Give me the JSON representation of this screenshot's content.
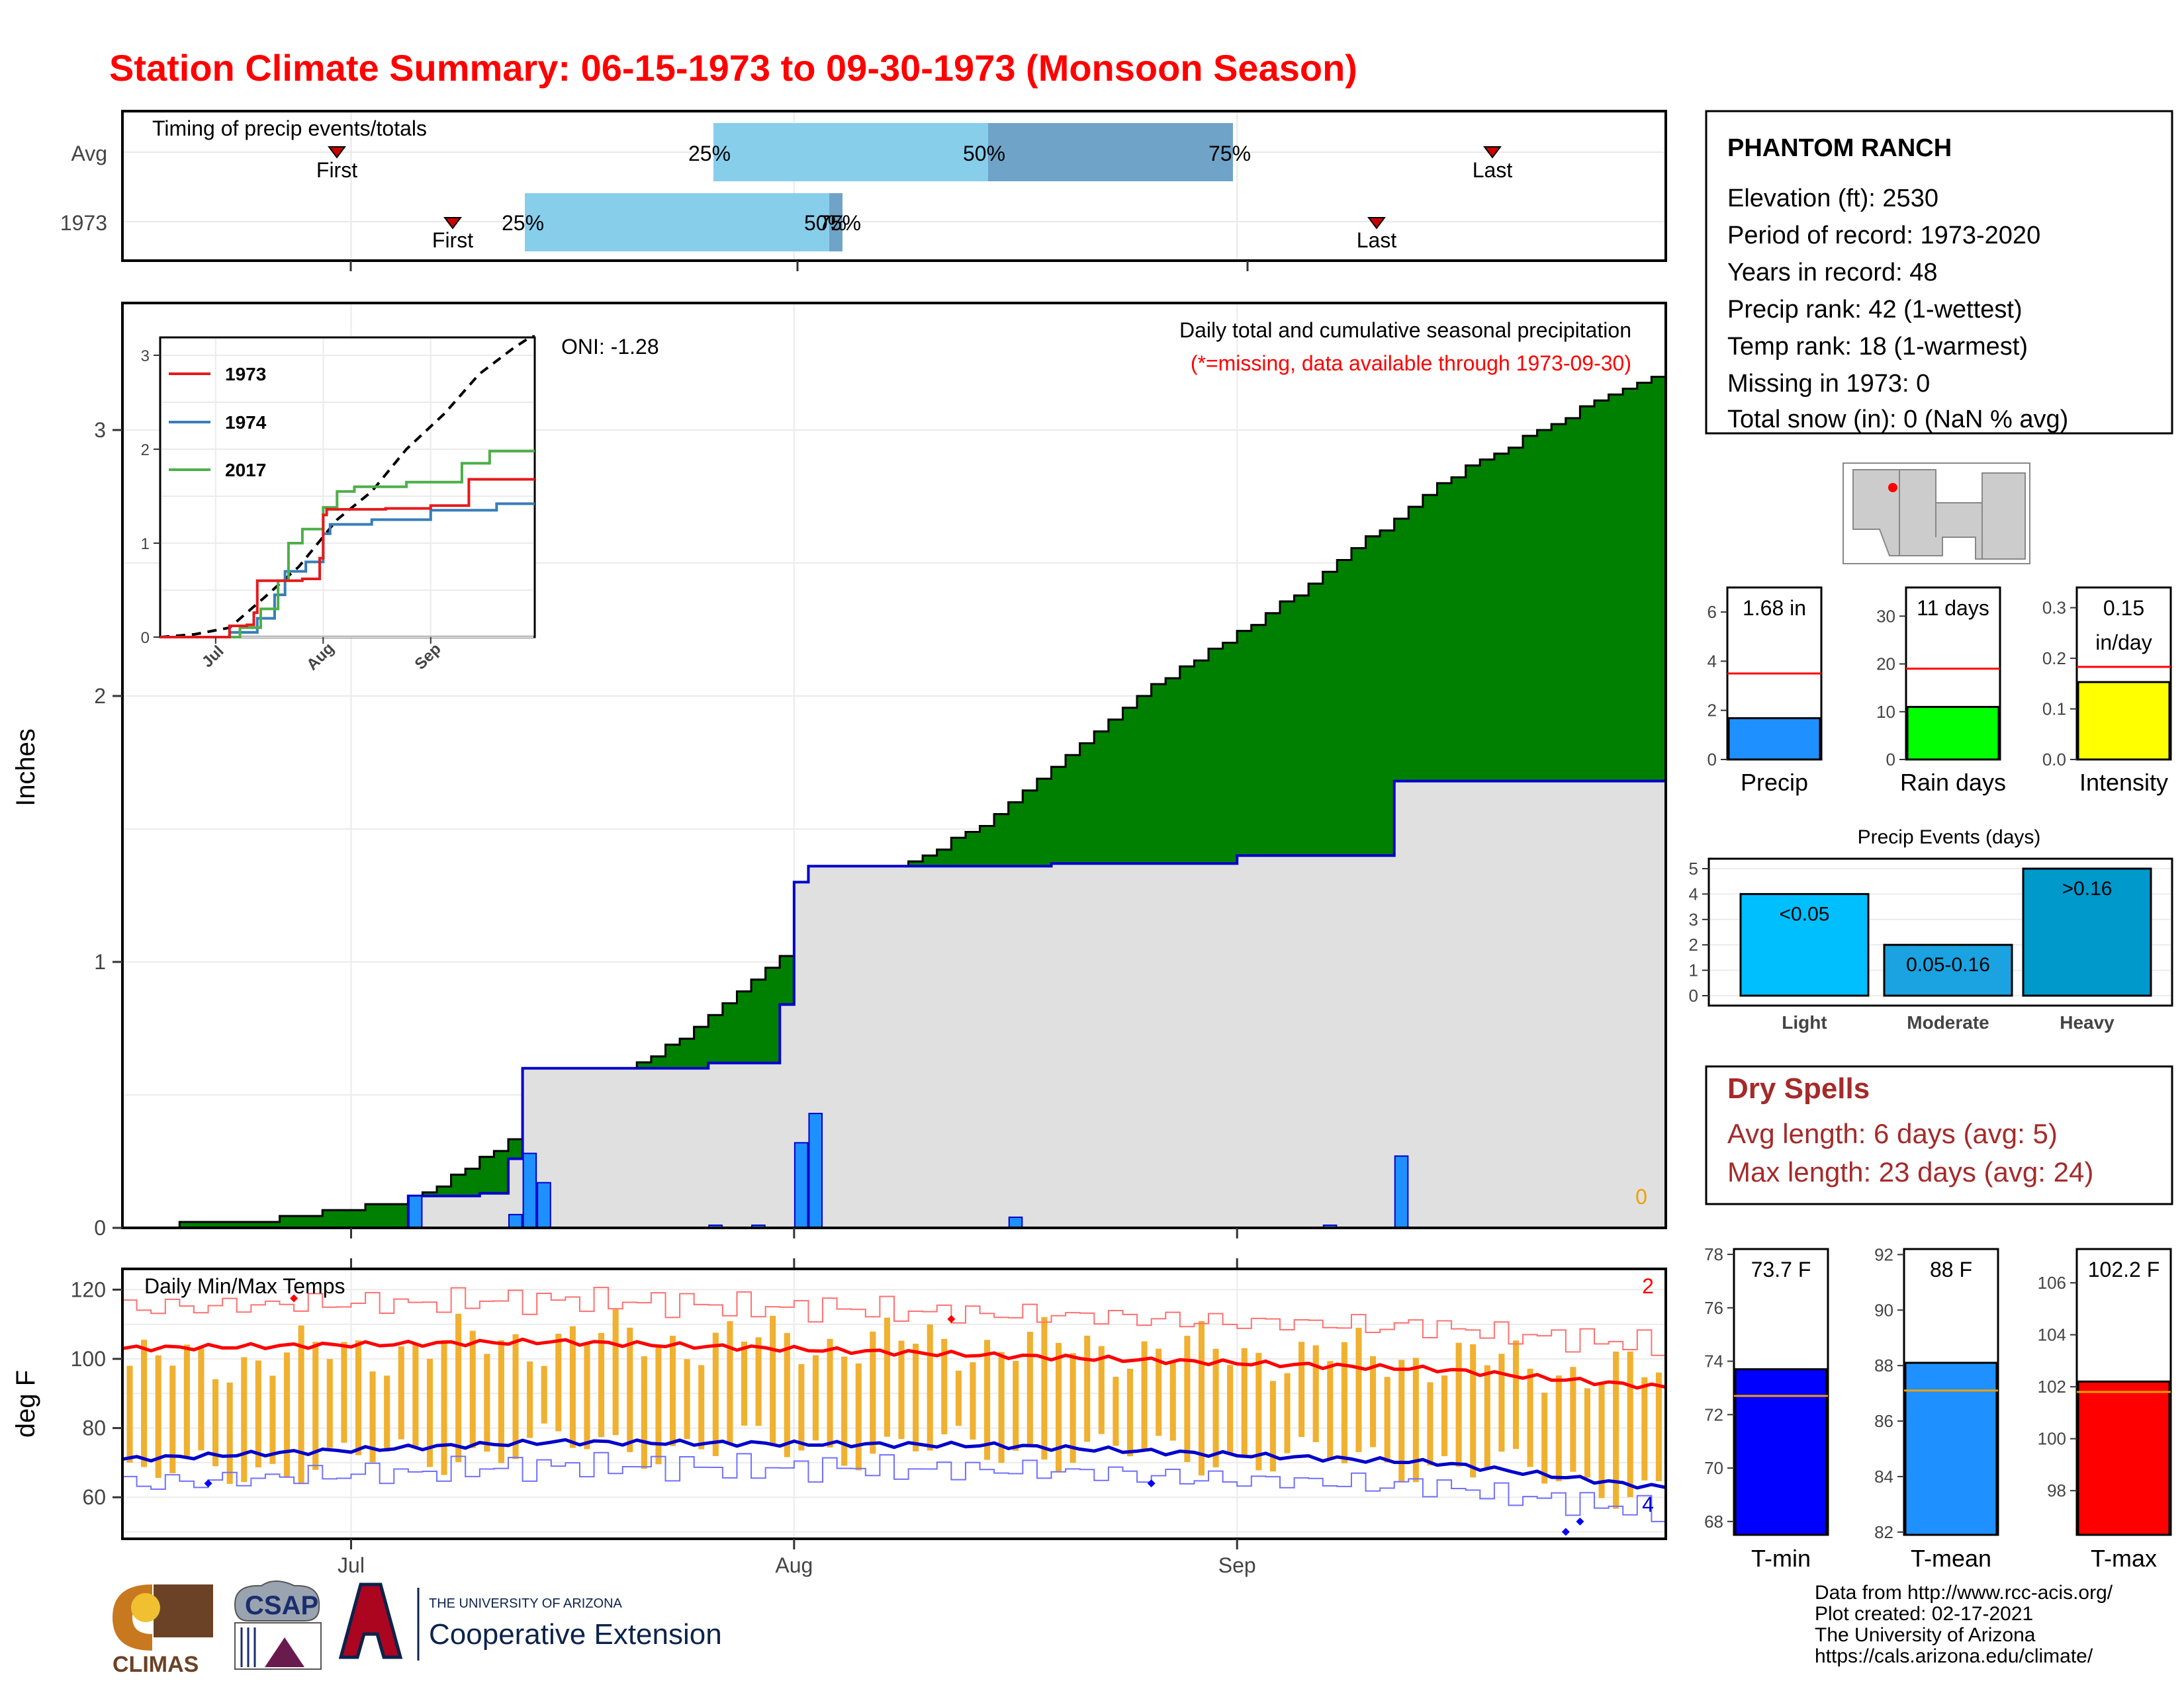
{
  "title": "Station Climate Summary: 06-15-1973 to 09-30-1973 (Monsoon Season)",
  "colors": {
    "title_red": "#ff0000",
    "brown": "#8b5a00",
    "green": "#008000",
    "blue_bar": "#1e90ff",
    "light_blue": "#87ceeb",
    "steel_blue": "#6fa3c8",
    "gray_fill": "#e0e0e0",
    "orange": "#f0b030",
    "dry_red": "#a52a2a"
  },
  "timing": {
    "title": "Timing of precip events/totals",
    "rows": [
      {
        "label": "Avg",
        "first": "First",
        "last": "Last",
        "p25": "25%",
        "p50": "50%",
        "p75": "75%"
      },
      {
        "label": "1973",
        "first": "First",
        "last": "Last",
        "p25": "25%",
        "p50": "50%",
        "p75": "75%"
      }
    ]
  },
  "main_chart": {
    "ylabel": "Inches",
    "yticks": [
      "0",
      "1",
      "2",
      "3"
    ],
    "xticks": [
      "Jul",
      "Aug",
      "Sep"
    ],
    "oni": "ONI: -1.28",
    "subtitle": "Daily total and cumulative seasonal precipitation",
    "missing_note": "(*=missing, data available through 1973-09-30)",
    "missing_count": "0"
  },
  "inset": {
    "yticks": [
      "0",
      "1",
      "2",
      "3"
    ],
    "xticks": [
      "Jul",
      "Aug",
      "Sep"
    ],
    "legend": [
      {
        "name": "1973",
        "color": "#e41a1c"
      },
      {
        "name": "1974",
        "color": "#377eb8"
      },
      {
        "name": "2017",
        "color": "#4daf4a"
      }
    ]
  },
  "temps": {
    "title": "Daily Min/Max Temps",
    "ylabel": "deg F",
    "yticks": [
      "60",
      "80",
      "100",
      "120"
    ],
    "max_count": "2",
    "min_count": "4"
  },
  "station": {
    "name": "PHANTOM RANCH",
    "lines": [
      "Elevation (ft): 2530",
      "Period of record: 1973-2020",
      "Years in record: 48",
      "Precip rank: 42 (1-wettest)",
      "Temp rank: 18 (1-warmest)",
      "Missing in 1973: 0",
      "Total snow (in): 0 (NaN % avg)"
    ]
  },
  "mini_bars": [
    {
      "label": "Precip",
      "value_text": "1.68 in",
      "value": 1.68,
      "avg": 3.5,
      "max": 7,
      "ticks": [
        "0",
        "2",
        "4",
        "6"
      ],
      "tickvals": [
        0,
        2,
        4,
        6
      ],
      "color": "#1e90ff"
    },
    {
      "label": "Rain days",
      "value_text": "11 days",
      "value": 11,
      "avg": 19,
      "max": 36,
      "ticks": [
        "0",
        "10",
        "20",
        "30"
      ],
      "tickvals": [
        0,
        10,
        20,
        30
      ],
      "color": "#00ff00"
    },
    {
      "label": "Intensity",
      "value_text": "0.15\nin/day",
      "value": 0.153,
      "avg": 0.183,
      "max": 0.34,
      "ticks": [
        "0.0",
        "0.1",
        "0.2",
        "0.3"
      ],
      "tickvals": [
        0,
        0.1,
        0.2,
        0.3
      ],
      "color": "#ffff00"
    }
  ],
  "events": {
    "title": "Precip Events (days)",
    "yticks": [
      "0",
      "1",
      "2",
      "3",
      "4",
      "5"
    ],
    "bars": [
      {
        "label": "Light",
        "inner": "<0.05",
        "value": 4,
        "color": "#00bfff"
      },
      {
        "label": "Moderate",
        "inner": "0.05-0.16",
        "value": 2,
        "color": "#1aa3e0"
      },
      {
        "label": "Heavy",
        "inner": ">0.16",
        "value": 5,
        "color": "#0099cc"
      }
    ]
  },
  "dry_spells": {
    "title": "Dry Spells",
    "avg_line": "Avg length: 6 days (avg: 5)",
    "max_line": "Max length: 23 days (avg: 24)"
  },
  "temp_bars": [
    {
      "label": "T-min",
      "value_text": "73.7 F",
      "value": 73.7,
      "avg": 72.7,
      "min": 67.5,
      "max": 78.2,
      "ticks": [
        "68",
        "70",
        "72",
        "74",
        "76",
        "78"
      ],
      "tickvals": [
        68,
        70,
        72,
        74,
        76,
        78
      ],
      "color": "#0000ff"
    },
    {
      "label": "T-mean",
      "value_text": "88 F",
      "value": 88.1,
      "avg": 87.1,
      "min": 81.9,
      "max": 92.2,
      "ticks": [
        "82",
        "84",
        "86",
        "88",
        "90",
        "92"
      ],
      "tickvals": [
        82,
        84,
        86,
        88,
        90,
        92
      ],
      "color": "#1e90ff"
    },
    {
      "label": "T-max",
      "value_text": "102.2 F",
      "value": 102.2,
      "avg": 101.8,
      "min": 96.3,
      "max": 107.3,
      "ticks": [
        "98",
        "100",
        "102",
        "104",
        "106"
      ],
      "tickvals": [
        98,
        100,
        102,
        104,
        106
      ],
      "color": "#ff0000"
    }
  ],
  "footer": {
    "lines": [
      "Data from http://www.rcc-acis.org/",
      "Plot created: 02-17-2021",
      "The University of Arizona",
      "https://cals.arizona.edu/climate/"
    ],
    "logos": {
      "climas": "CLIMAS",
      "csap": "CSAP",
      "ua_small": "THE UNIVERSITY OF ARIZONA",
      "ua_big": "Cooperative Extension"
    }
  },
  "chart_data": [
    {
      "type": "area",
      "title": "Daily total and cumulative seasonal precipitation",
      "ylabel": "Inches",
      "ylim": [
        0,
        3.5
      ],
      "series": [
        {
          "name": "1973",
          "x": [
            "06-15",
            "07-05",
            "07-10",
            "07-12",
            "07-13",
            "07-26",
            "07-31",
            "08-01",
            "08-02",
            "08-19",
            "09-01",
            "09-12",
            "09-30"
          ],
          "values": [
            0,
            0.12,
            0.13,
            0.26,
            0.6,
            0.62,
            0.84,
            1.3,
            1.36,
            1.37,
            1.4,
            1.68,
            1.68
          ]
        },
        {
          "x": [
            "06-15",
            "06-25",
            "07-05",
            "07-15",
            "07-25",
            "08-05",
            "08-15",
            "08-25",
            "09-05",
            "09-15",
            "09-25",
            "09-30"
          ],
          "values": [
            0,
            0.03,
            0.1,
            0.42,
            0.75,
            1.25,
            1.55,
            2.0,
            2.38,
            2.8,
            3.08,
            3.2
          ]
        }
      ],
      "daily_bars": [
        {
          "x": "07-05",
          "value": 0.12
        },
        {
          "x": "07-12",
          "value": 0.05
        },
        {
          "x": "07-13",
          "value": 0.28
        },
        {
          "x": "07-14",
          "value": 0.17
        },
        {
          "x": "07-26",
          "value": 0.01
        },
        {
          "x": "07-29",
          "value": 0.01
        },
        {
          "x": "08-01",
          "value": 0.32
        },
        {
          "x": "08-02",
          "value": 0.43
        },
        {
          "x": "08-16",
          "value": 0.04
        },
        {
          "x": "09-07",
          "value": 0.01
        },
        {
          "x": "09-12",
          "value": 0.27
        }
      ]
    },
    {
      "type": "line",
      "title": "Daily Min/Max Temps",
      "ylabel": "deg F",
      "ylim": [
        48,
        126
      ],
      "series": [
        {
          "name": "1973 max",
          "x": [
            "06-15",
            "07-15",
            "08-15",
            "09-15",
            "09-30"
          ],
          "values": [
            98,
            106,
            104,
            100,
            95
          ]
        },
        {
          "name": "1973 min",
          "x": [
            "06-15",
            "07-15",
            "08-15",
            "09-15",
            "09-30"
          ],
          "values": [
            66,
            75,
            74,
            70,
            62
          ]
        },
        {
          "name": "avg max",
          "x": [
            "06-15",
            "07-15",
            "08-15",
            "09-15",
            "09-30"
          ],
          "values": [
            103,
            105,
            101,
            97,
            92
          ]
        },
        {
          "name": "avg min",
          "x": [
            "06-15",
            "07-15",
            "08-15",
            "09-15",
            "09-30"
          ],
          "values": [
            71,
            76,
            75,
            70,
            63
          ]
        }
      ]
    }
  ]
}
